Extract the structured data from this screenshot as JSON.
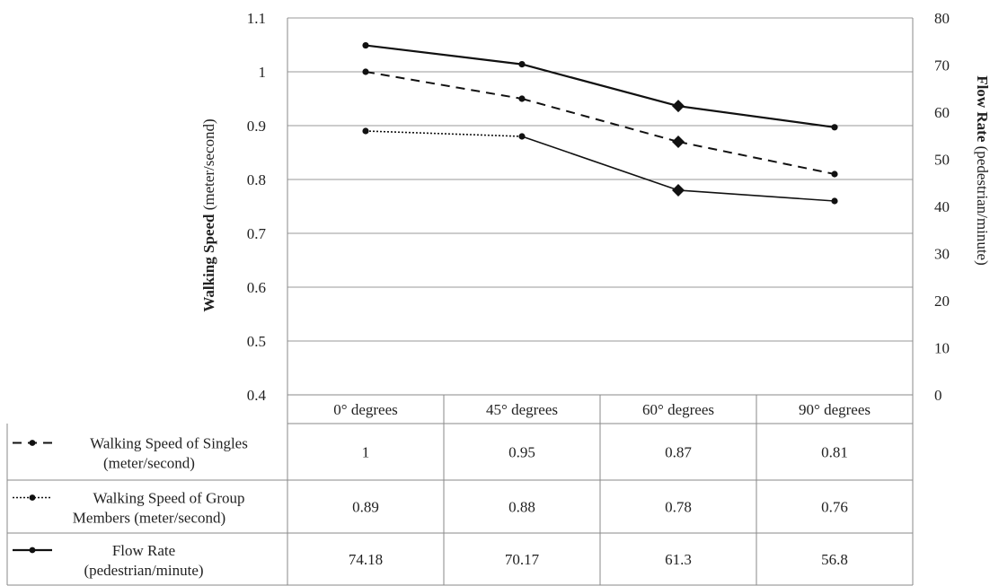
{
  "chart_data": {
    "type": "line",
    "categories": [
      "0° degrees",
      "45° degrees",
      "60° degrees",
      "90° degrees"
    ],
    "y_left": {
      "label_bold": "Walking Speed",
      "label_unit": " (meter/second)",
      "ylim": [
        0.4,
        1.1
      ],
      "ticks": [
        0.4,
        0.5,
        0.6,
        0.7,
        0.8,
        0.9,
        1,
        1.1
      ],
      "tick_labels": [
        "0.4",
        "0.5",
        "0.6",
        "0.7",
        "0.8",
        "0.9",
        "1",
        "1.1"
      ]
    },
    "y_right": {
      "label_bold": "Flow Rate",
      "label_unit": " (pedestrian/minute)",
      "ylim": [
        0,
        80
      ],
      "ticks": [
        0,
        10,
        20,
        30,
        40,
        50,
        60,
        70,
        80
      ],
      "tick_labels": [
        "0",
        "10",
        "20",
        "30",
        "40",
        "50",
        "60",
        "70",
        "80"
      ]
    },
    "grid": true,
    "series": [
      {
        "name_lines": [
          "Walking Speed of Singles",
          "(meter/second)"
        ],
        "axis": "left",
        "style": "dashed",
        "values": [
          1,
          0.95,
          0.87,
          0.81
        ],
        "value_labels": [
          "1",
          "0.95",
          "0.87",
          "0.81"
        ]
      },
      {
        "name_lines": [
          "Walking Speed of Group",
          "Members (meter/second)"
        ],
        "axis": "left",
        "style": "dotted",
        "values": [
          0.89,
          0.88,
          0.78,
          0.76
        ],
        "value_labels": [
          "0.89",
          "0.88",
          "0.78",
          "0.76"
        ]
      },
      {
        "name_lines": [
          "Flow Rate",
          "(pedestrian/minute)"
        ],
        "axis": "right",
        "style": "solid",
        "values": [
          74.18,
          70.17,
          61.3,
          56.8
        ],
        "value_labels": [
          "74.18",
          "70.17",
          "61.3",
          "56.8"
        ]
      }
    ]
  },
  "colors": {
    "line": "#111111",
    "grid": "#9a9a9a",
    "border": "#8a8a8a"
  }
}
